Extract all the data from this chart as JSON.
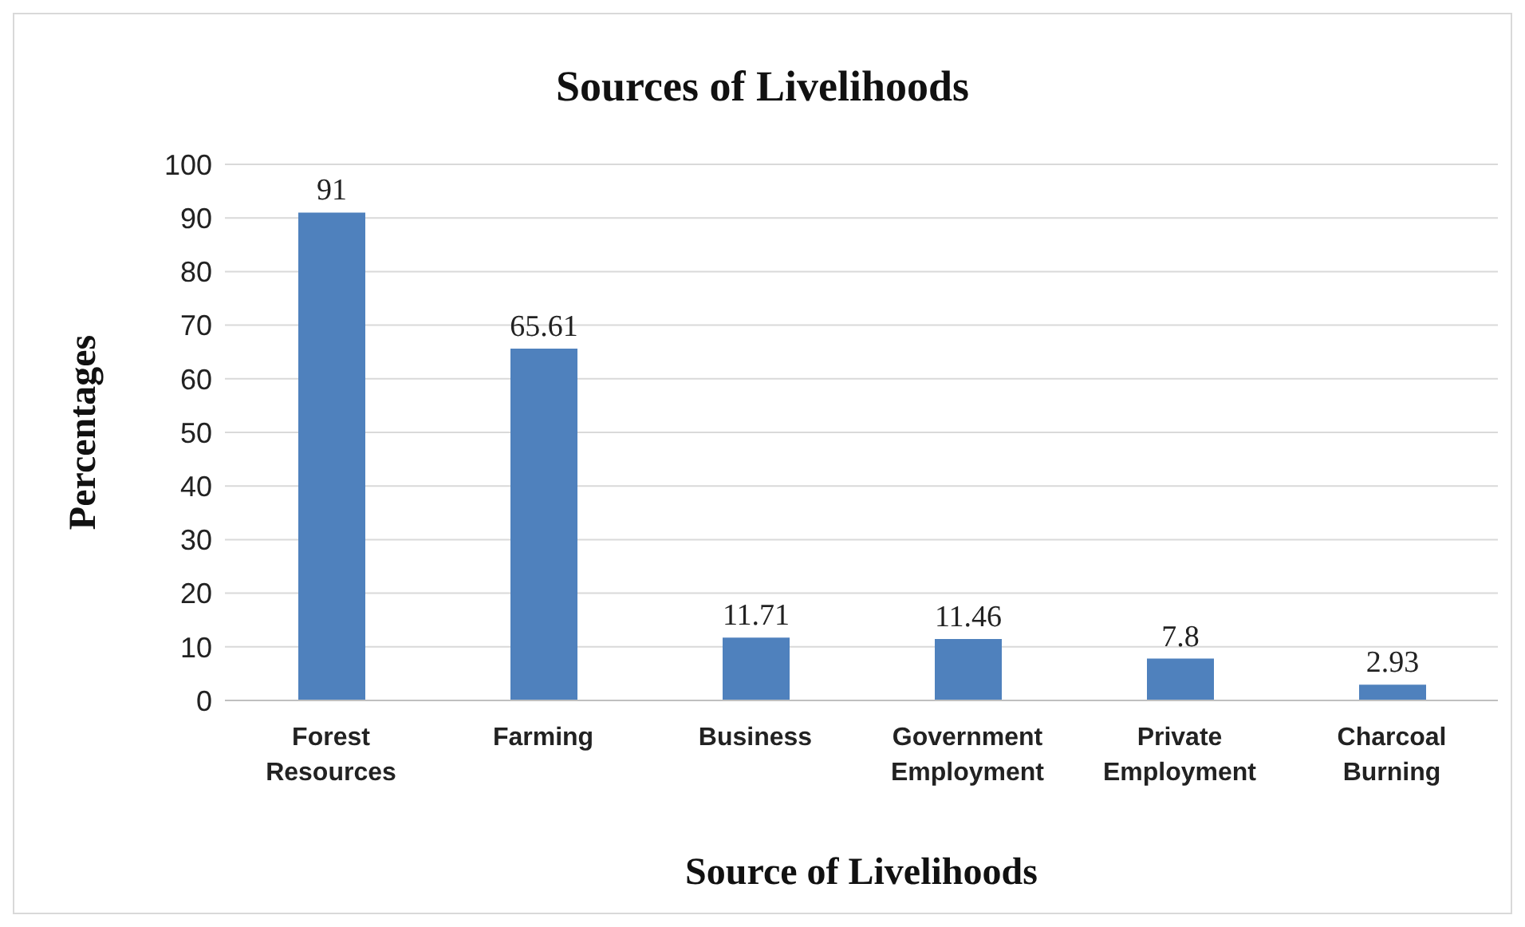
{
  "chart_data": {
    "type": "bar",
    "title": "Sources of Livelihoods",
    "xlabel": "Source of Livelihoods",
    "ylabel": "Percentages",
    "categories": [
      "Forest Resources",
      "Farming",
      "Business",
      "Government Employment",
      "Private Employment",
      "Charcoal Burning"
    ],
    "values": [
      91,
      65.61,
      11.71,
      11.46,
      7.8,
      2.93
    ],
    "color": "#4f81bd",
    "ylim": [
      0,
      100
    ],
    "yticks": [
      0,
      10,
      20,
      30,
      40,
      50,
      60,
      70,
      80,
      90,
      100
    ],
    "grid": "y",
    "data_labels": true,
    "legend": false
  }
}
